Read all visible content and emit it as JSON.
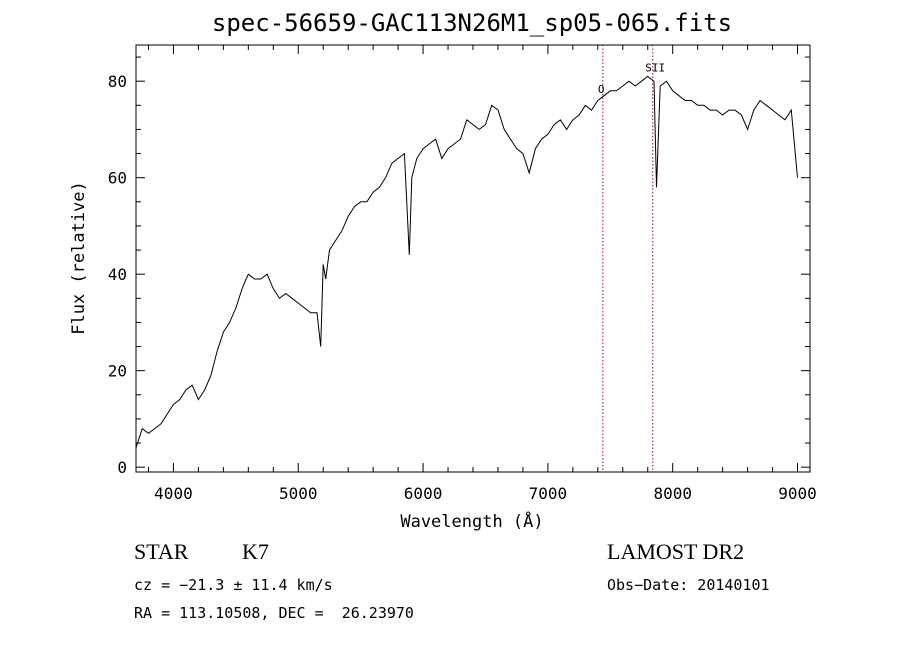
{
  "chart_data": {
    "type": "line",
    "title": "spec-56659-GAC113N26M1_sp05-065.fits",
    "xlabel": "Wavelength (Å)",
    "ylabel": "Flux (relative)",
    "xlim": [
      3700,
      9100
    ],
    "ylim": [
      -1,
      87.5
    ],
    "xticks": [
      4000,
      5000,
      6000,
      7000,
      8000,
      9000
    ],
    "xtick_labels": [
      "4000",
      "5000",
      "6000",
      "7000",
      "8000",
      "9000"
    ],
    "yticks": [
      0,
      20,
      40,
      60,
      80
    ],
    "ytick_labels": [
      "0",
      "20",
      "40",
      "60",
      "80"
    ],
    "grid": false,
    "series": [
      {
        "x": [
          3700,
          3750,
          3800,
          3850,
          3900,
          3950,
          4000,
          4050,
          4100,
          4150,
          4200,
          4250,
          4300,
          4350,
          4400,
          4450,
          4500,
          4550,
          4600,
          4650,
          4700,
          4750,
          4800,
          4850,
          4900,
          4950,
          5000,
          5050,
          5100,
          5150,
          5180,
          5200,
          5220,
          5250,
          5300,
          5350,
          5400,
          5450,
          5500,
          5550,
          5600,
          5650,
          5700,
          5750,
          5800,
          5850,
          5890,
          5910,
          5950,
          6000,
          6050,
          6100,
          6150,
          6200,
          6250,
          6300,
          6350,
          6400,
          6450,
          6500,
          6550,
          6600,
          6650,
          6700,
          6750,
          6800,
          6850,
          6900,
          6950,
          7000,
          7050,
          7100,
          7150,
          7200,
          7250,
          7300,
          7350,
          7400,
          7450,
          7500,
          7550,
          7600,
          7650,
          7700,
          7750,
          7800,
          7850,
          7870,
          7900,
          7950,
          8000,
          8050,
          8100,
          8150,
          8200,
          8250,
          8300,
          8350,
          8400,
          8450,
          8500,
          8550,
          8600,
          8650,
          8700,
          8750,
          8800,
          8850,
          8900,
          8950,
          9000
        ],
        "y": [
          4,
          8,
          7,
          8,
          9,
          11,
          13,
          14,
          16,
          17,
          14,
          16,
          19,
          24,
          28,
          30,
          33,
          37,
          40,
          39,
          39,
          40,
          37,
          35,
          36,
          35,
          34,
          33,
          32,
          32,
          25,
          42,
          39,
          45,
          47,
          49,
          52,
          54,
          55,
          55,
          57,
          58,
          60,
          63,
          64,
          65,
          44,
          60,
          64,
          66,
          67,
          68,
          64,
          66,
          67,
          68,
          72,
          71,
          70,
          71,
          75,
          74,
          70,
          68,
          66,
          65,
          61,
          66,
          68,
          69,
          71,
          72,
          70,
          72,
          73,
          75,
          74,
          76,
          77,
          78,
          78,
          79,
          80,
          79,
          80,
          81,
          80,
          58,
          79,
          80,
          78,
          77,
          76,
          76,
          75,
          75,
          74,
          74,
          73,
          74,
          74,
          73,
          70,
          74,
          76,
          75,
          74,
          73,
          72,
          74,
          60
        ]
      }
    ],
    "vertical_lines": [
      {
        "x": 7440,
        "style": "dotted",
        "color": "#c00000"
      },
      {
        "x": 7840,
        "style": "dotted",
        "color": "#c00000"
      }
    ],
    "annotations": [
      {
        "text": "O",
        "x": 7400,
        "y": 77.5
      },
      {
        "text": "SII",
        "x": 7780,
        "y": 82
      }
    ]
  },
  "info": {
    "class_label": "STAR",
    "subclass": "K7",
    "survey": "LAMOST DR2",
    "cz_line": "cz = −21.3 ± 11.4 km/s",
    "obs_date_line": "Obs−Date: 20140101",
    "coords_line": "RA = 113.10508, DEC =  26.23970"
  }
}
